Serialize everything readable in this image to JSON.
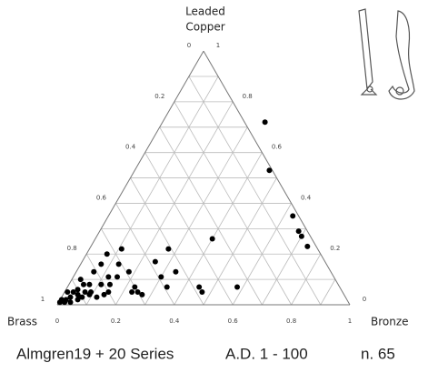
{
  "chart_data": {
    "type": "ternary",
    "top_label": [
      "Leaded",
      "Copper"
    ],
    "left_label": "Brass",
    "right_label": "Bronze",
    "caption": [
      "Almgren19 + 20 Series",
      "A.D. 1 - 100",
      "n. 65"
    ],
    "left_ticks": [
      0,
      0.2,
      0.4,
      0.6,
      0.8,
      1
    ],
    "right_ticks": [
      0,
      0.2,
      0.4,
      0.6,
      0.8,
      1
    ],
    "bottom_ticks": [
      0,
      0.2,
      0.4,
      0.6,
      0.8,
      1
    ],
    "grid": true,
    "grid_divisions": 10,
    "color": "#000000",
    "bronze": [
      0.35,
      0.46,
      0.63,
      0.68,
      0.7,
      0.74,
      0.4,
      0.27,
      0.25,
      0.34,
      0.3,
      0.34,
      0.45,
      0.47,
      0.58,
      0.11,
      0.07,
      0.07,
      0.13,
      0.06,
      0.18,
      0.12,
      0.15,
      0.03,
      0.23,
      0.27,
      0.25,
      0.23,
      0.15,
      0.11,
      0.07,
      0.05,
      0.04,
      0.03,
      0.03,
      0.02,
      0.02,
      0.04,
      0.06,
      0.07,
      0.09,
      0.12,
      0.14,
      0.09,
      0.07,
      0.05,
      0.004,
      0.005,
      0.01,
      0.06,
      0.14
    ],
    "leaded_copper": [
      0.72,
      0.53,
      0.35,
      0.29,
      0.27,
      0.23,
      0.26,
      0.22,
      0.17,
      0.13,
      0.11,
      0.07,
      0.07,
      0.05,
      0.07,
      0.22,
      0.2,
      0.16,
      0.16,
      0.13,
      0.13,
      0.11,
      0.11,
      0.1,
      0.07,
      0.04,
      0.05,
      0.05,
      0.05,
      0.08,
      0.08,
      0.08,
      0.06,
      0.05,
      0.03,
      0.02,
      0.01,
      0.01,
      0.02,
      0.03,
      0.04,
      0.03,
      0.04,
      0.05,
      0.05,
      0.04,
      0.01,
      0.02,
      0.05,
      0.03,
      0.08
    ]
  }
}
